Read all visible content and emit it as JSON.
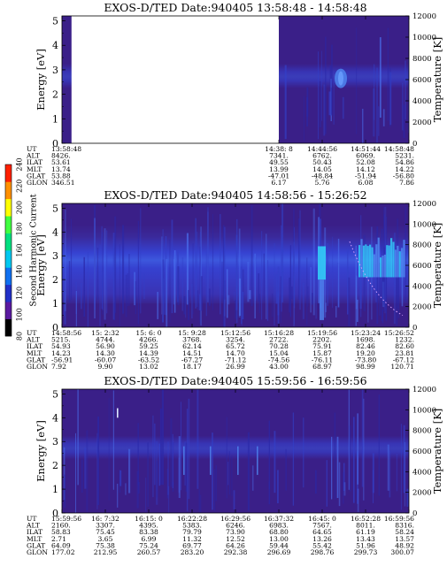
{
  "colorbar": {
    "label": "Second Harmonic Current",
    "ticks": [
      "80",
      "100",
      "120",
      "140",
      "160",
      "180",
      "200",
      "220",
      "240"
    ]
  },
  "colors": {
    "background": "#3a1f88",
    "band_light": "#3545d8",
    "band_bright": "#4f86f0",
    "highlight": "#33c6f6",
    "colorbar_stops": [
      "#000000",
      "#5a1aa0",
      "#2230c8",
      "#1070f0",
      "#00c8f0",
      "#00e080",
      "#40ff40",
      "#ffff00",
      "#ff9000",
      "#ff2000"
    ]
  },
  "chart_data": [
    {
      "type": "heatmap",
      "title": "EXOS-D/TED   Date:940405   13:58:48 - 14:58:48",
      "ylabel": "Energy [eV]",
      "y2label": "Temperature [K]",
      "yticks": [
        "0",
        "1",
        "2",
        "3",
        "4",
        "5"
      ],
      "y2ticks": [
        "0",
        "2000",
        "4000",
        "6000",
        "8000",
        "10000",
        "12000"
      ],
      "ylim": [
        0,
        5.2
      ],
      "y2lim": [
        0,
        12000
      ],
      "row_labels": [
        "UT",
        "ALT",
        "ILAT",
        "MLT",
        "GLAT",
        "GLON"
      ],
      "columns": [
        {
          "values": [
            "13:58:48",
            "8426.",
            "53.61",
            "13.74",
            "53.88",
            "346.51"
          ]
        },
        {
          "values": [
            "14:38: 8",
            "7341.",
            "49.55",
            "13.99",
            "-47.01",
            "6.17"
          ]
        },
        {
          "values": [
            "14:44:56",
            "6762.",
            "50.43",
            "14.05",
            "-48.84",
            "5.76"
          ]
        },
        {
          "values": [
            "14:51:44",
            "6069.",
            "52.08",
            "14.12",
            "-51.94",
            "6.08"
          ]
        },
        {
          "values": [
            "14:58:48",
            "5231.",
            "54.86",
            "14.22",
            "-56.80",
            "7.86"
          ]
        }
      ],
      "features": [
        {
          "type": "data-gap-start",
          "ut": "13:58:48"
        },
        {
          "type": "data-resumes",
          "ut": "14:38: 8"
        }
      ]
    },
    {
      "type": "heatmap",
      "title": "EXOS-D/TED   Date:940405   14:58:56 - 15:26:52",
      "ylabel": "Energy [eV]",
      "y2label": "Temperature [K]",
      "yticks": [
        "0",
        "1",
        "2",
        "3",
        "4",
        "5"
      ],
      "y2ticks": [
        "0",
        "2000",
        "4000",
        "6000",
        "8000",
        "10000",
        "12000"
      ],
      "ylim": [
        0,
        5.2
      ],
      "y2lim": [
        0,
        12000
      ],
      "row_labels": [
        "UT",
        "ALT",
        "ILAT",
        "MLT",
        "GLAT",
        "GLON"
      ],
      "columns": [
        {
          "values": [
            "14:58:56",
            "5215.",
            "54.93",
            "14.23",
            "-56.91",
            "7.92"
          ]
        },
        {
          "values": [
            "15: 2:32",
            "4744.",
            "56.90",
            "14.30",
            "-60.07",
            "9.90"
          ]
        },
        {
          "values": [
            "15: 6: 0",
            "4266.",
            "59.25",
            "14.39",
            "-63.52",
            "13.02"
          ]
        },
        {
          "values": [
            "15: 9:28",
            "3768.",
            "62.14",
            "14.51",
            "-67.27",
            "18.17"
          ]
        },
        {
          "values": [
            "15:12:56",
            "3254.",
            "65.72",
            "14.70",
            "-71.12",
            "26.99"
          ]
        },
        {
          "values": [
            "15:16:28",
            "2722.",
            "70.28",
            "15.04",
            "-74.56",
            "43.00"
          ]
        },
        {
          "values": [
            "15:19:56",
            "2202.",
            "75.91",
            "15.87",
            "-76.11",
            "68.97"
          ]
        },
        {
          "values": [
            "15:23:24",
            "1698.",
            "82.46",
            "19.20",
            "-73.80",
            "98.99"
          ]
        },
        {
          "values": [
            "15:26:52",
            "1232.",
            "82.60",
            "23.81",
            "-67.12",
            "120.71"
          ]
        }
      ]
    },
    {
      "type": "heatmap",
      "title": "EXOS-D/TED   Date:940405   15:59:56 - 16:59:56",
      "ylabel": "Energy [eV]",
      "y2label": "Temperature [K]",
      "yticks": [
        "0",
        "1",
        "2",
        "3",
        "4",
        "5"
      ],
      "y2ticks": [
        "0",
        "2000",
        "4000",
        "6000",
        "8000",
        "10000",
        "12000"
      ],
      "ylim": [
        0,
        5.2
      ],
      "y2lim": [
        0,
        12000
      ],
      "row_labels": [
        "UT",
        "ALT",
        "ILAT",
        "MLT",
        "GLAT",
        "GLON"
      ],
      "columns": [
        {
          "values": [
            "15:59:56",
            "2160.",
            "58.83",
            "2.71",
            "64.09",
            "177.02"
          ]
        },
        {
          "values": [
            "16: 7:32",
            "3307.",
            "75.45",
            "3.65",
            "75.38",
            "212.95"
          ]
        },
        {
          "values": [
            "16:15: 0",
            "4395.",
            "83.38",
            "6.99",
            "75.24",
            "260.57"
          ]
        },
        {
          "values": [
            "16:22:28",
            "5383.",
            "79.79",
            "11.32",
            "69.77",
            "283.20"
          ]
        },
        {
          "values": [
            "16:29:56",
            "6246.",
            "73.90",
            "12.52",
            "64.26",
            "292.38"
          ]
        },
        {
          "values": [
            "16:37:32",
            "6983.",
            "68.80",
            "13.00",
            "59.44",
            "296.69"
          ]
        },
        {
          "values": [
            "16:45: 0",
            "7567.",
            "64.65",
            "13.26",
            "55.42",
            "298.76"
          ]
        },
        {
          "values": [
            "16:52:28",
            "8011.",
            "61.19",
            "13.43",
            "51.96",
            "299.73"
          ]
        },
        {
          "values": [
            "16:59:56",
            "8316.",
            "58.24",
            "13.57",
            "48.92",
            "300.07"
          ]
        }
      ]
    }
  ]
}
